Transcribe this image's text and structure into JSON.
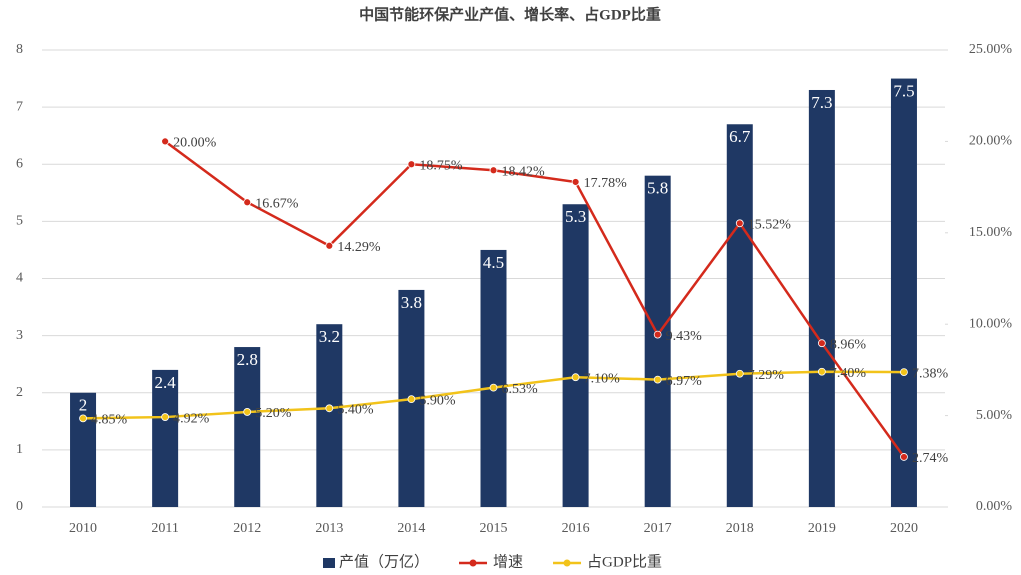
{
  "chart_data": {
    "type": "bar",
    "title": "中国节能环保产业产值、增长率、占GDP比重",
    "categories": [
      "2010",
      "2011",
      "2012",
      "2013",
      "2014",
      "2015",
      "2016",
      "2017",
      "2018",
      "2019",
      "2020"
    ],
    "series": [
      {
        "name": "产值（万亿）",
        "type": "bar",
        "color": "#1f3864",
        "values": [
          2,
          2.4,
          2.8,
          3.2,
          3.8,
          4.5,
          5.3,
          5.8,
          6.7,
          7.3,
          7.5
        ]
      },
      {
        "name": "增速",
        "type": "line",
        "axis": "y2",
        "color": "#d42a1c",
        "values": [
          null,
          20.0,
          16.67,
          14.29,
          18.75,
          18.42,
          17.78,
          9.43,
          15.52,
          8.96,
          2.74
        ],
        "value_labels": [
          null,
          "20.00%",
          "16.67%",
          "14.29%",
          "18.75%",
          "18.42%",
          "17.78%",
          "9.43%",
          "15.52%",
          "8.96%",
          "2.74%"
        ]
      },
      {
        "name": "占GDP比重",
        "type": "line",
        "axis": "y2",
        "color": "#f2c31a",
        "values": [
          4.85,
          4.92,
          5.2,
          5.4,
          5.9,
          6.53,
          7.1,
          6.97,
          7.29,
          7.4,
          7.38
        ],
        "value_labels": [
          "4.85%",
          "4.92%",
          "5.20%",
          "5.40%",
          "5.90%",
          "6.53%",
          "7.10%",
          "6.97%",
          "7.29%",
          "7.40%",
          "7.38%"
        ]
      }
    ],
    "ylim": [
      0,
      8
    ],
    "yticks": [
      0,
      1,
      2,
      3,
      4,
      5,
      6,
      7,
      8
    ],
    "y2lim": [
      0,
      25
    ],
    "y2ticks": [
      {
        "value": 0,
        "label": "0.00%"
      },
      {
        "value": 5,
        "label": "5.00%"
      },
      {
        "value": 10,
        "label": "10.00%"
      },
      {
        "value": 15,
        "label": "15.00%"
      },
      {
        "value": 20,
        "label": "20.00%"
      },
      {
        "value": 25,
        "label": "25.00%"
      }
    ],
    "grid": true,
    "legend": "bottom"
  }
}
